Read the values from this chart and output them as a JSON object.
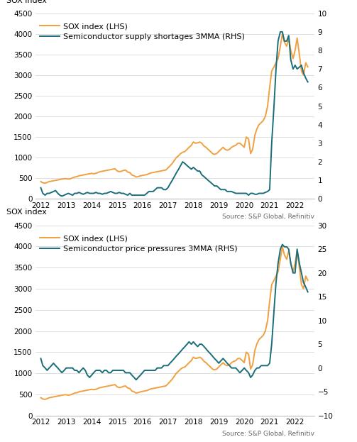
{
  "fig_width": 5.03,
  "fig_height": 6.23,
  "dpi": 100,
  "background_color": "#ffffff",
  "sox_color": "#f0a040",
  "shortage_color": "#1a6e7a",
  "pressure_color": "#1a6e7a",
  "ylabel_lhs": "SOX index",
  "source_text": "Source: S&P Global, Refinitiv",
  "chart1": {
    "legend1": "SOX index (LHS)",
    "legend2": "Semiconductor supply shortages 3MMA (RHS)",
    "ylim_lhs": [
      0,
      4500
    ],
    "yticks_lhs": [
      0,
      500,
      1000,
      1500,
      2000,
      2500,
      3000,
      3500,
      4000,
      4500
    ],
    "ylim_rhs": [
      0,
      10
    ],
    "yticks_rhs": [
      0,
      1,
      2,
      3,
      4,
      5,
      6,
      7,
      8,
      9,
      10
    ],
    "sox_x": [
      2012.0,
      2012.08,
      2012.17,
      2012.25,
      2012.33,
      2012.42,
      2012.5,
      2012.58,
      2012.67,
      2012.75,
      2012.83,
      2012.92,
      2013.0,
      2013.08,
      2013.17,
      2013.25,
      2013.33,
      2013.42,
      2013.5,
      2013.58,
      2013.67,
      2013.75,
      2013.83,
      2013.92,
      2014.0,
      2014.08,
      2014.17,
      2014.25,
      2014.33,
      2014.42,
      2014.5,
      2014.58,
      2014.67,
      2014.75,
      2014.83,
      2014.92,
      2015.0,
      2015.08,
      2015.17,
      2015.25,
      2015.33,
      2015.42,
      2015.5,
      2015.58,
      2015.67,
      2015.75,
      2015.83,
      2015.92,
      2016.0,
      2016.08,
      2016.17,
      2016.25,
      2016.33,
      2016.42,
      2016.5,
      2016.58,
      2016.67,
      2016.75,
      2016.83,
      2016.92,
      2017.0,
      2017.08,
      2017.17,
      2017.25,
      2017.33,
      2017.42,
      2017.5,
      2017.58,
      2017.67,
      2017.75,
      2017.83,
      2017.92,
      2018.0,
      2018.08,
      2018.17,
      2018.25,
      2018.33,
      2018.42,
      2018.5,
      2018.58,
      2018.67,
      2018.75,
      2018.83,
      2018.92,
      2019.0,
      2019.08,
      2019.17,
      2019.25,
      2019.33,
      2019.42,
      2019.5,
      2019.58,
      2019.67,
      2019.75,
      2019.83,
      2019.92,
      2020.0,
      2020.08,
      2020.17,
      2020.25,
      2020.33,
      2020.42,
      2020.5,
      2020.58,
      2020.67,
      2020.75,
      2020.83,
      2020.92,
      2021.0,
      2021.08,
      2021.17,
      2021.25,
      2021.33,
      2021.42,
      2021.5,
      2021.58,
      2021.67,
      2021.75,
      2021.83,
      2021.92,
      2022.0,
      2022.08,
      2022.17,
      2022.25,
      2022.33,
      2022.42,
      2022.5
    ],
    "sox_y": [
      420,
      390,
      380,
      400,
      420,
      430,
      440,
      450,
      460,
      470,
      480,
      490,
      490,
      480,
      490,
      510,
      530,
      540,
      560,
      570,
      580,
      590,
      600,
      610,
      620,
      610,
      620,
      640,
      660,
      670,
      680,
      690,
      700,
      710,
      720,
      730,
      680,
      660,
      670,
      690,
      700,
      650,
      640,
      580,
      560,
      530,
      540,
      560,
      570,
      580,
      590,
      610,
      630,
      640,
      650,
      660,
      670,
      680,
      690,
      700,
      750,
      800,
      860,
      930,
      1000,
      1050,
      1100,
      1130,
      1150,
      1200,
      1250,
      1300,
      1380,
      1350,
      1360,
      1380,
      1350,
      1280,
      1250,
      1200,
      1150,
      1100,
      1080,
      1100,
      1150,
      1200,
      1250,
      1200,
      1180,
      1200,
      1250,
      1280,
      1300,
      1350,
      1350,
      1300,
      1250,
      1500,
      1450,
      1100,
      1200,
      1550,
      1700,
      1800,
      1850,
      1900,
      2000,
      2250,
      2700,
      3100,
      3200,
      3300,
      3400,
      3700,
      4000,
      3800,
      3700,
      3900,
      3600,
      3400,
      3600,
      3900,
      3500,
      3100,
      3000,
      3300,
      3200
    ],
    "rhs_x": [
      2012.0,
      2012.08,
      2012.17,
      2012.25,
      2012.33,
      2012.42,
      2012.5,
      2012.58,
      2012.67,
      2012.75,
      2012.83,
      2012.92,
      2013.0,
      2013.08,
      2013.17,
      2013.25,
      2013.33,
      2013.42,
      2013.5,
      2013.58,
      2013.67,
      2013.75,
      2013.83,
      2013.92,
      2014.0,
      2014.08,
      2014.17,
      2014.25,
      2014.33,
      2014.42,
      2014.5,
      2014.58,
      2014.67,
      2014.75,
      2014.83,
      2014.92,
      2015.0,
      2015.08,
      2015.17,
      2015.25,
      2015.33,
      2015.42,
      2015.5,
      2015.58,
      2015.67,
      2015.75,
      2015.83,
      2015.92,
      2016.0,
      2016.08,
      2016.17,
      2016.25,
      2016.33,
      2016.42,
      2016.5,
      2016.58,
      2016.67,
      2016.75,
      2016.83,
      2016.92,
      2017.0,
      2017.08,
      2017.17,
      2017.25,
      2017.33,
      2017.42,
      2017.5,
      2017.58,
      2017.67,
      2017.75,
      2017.83,
      2017.92,
      2018.0,
      2018.08,
      2018.17,
      2018.25,
      2018.33,
      2018.42,
      2018.5,
      2018.58,
      2018.67,
      2018.75,
      2018.83,
      2018.92,
      2019.0,
      2019.08,
      2019.17,
      2019.25,
      2019.33,
      2019.42,
      2019.5,
      2019.58,
      2019.67,
      2019.75,
      2019.83,
      2019.92,
      2020.0,
      2020.08,
      2020.17,
      2020.25,
      2020.33,
      2020.42,
      2020.5,
      2020.58,
      2020.67,
      2020.75,
      2020.83,
      2020.92,
      2021.0,
      2021.08,
      2021.17,
      2021.25,
      2021.33,
      2021.42,
      2021.5,
      2021.58,
      2021.67,
      2021.75,
      2021.83,
      2021.92,
      2022.0,
      2022.08,
      2022.17,
      2022.25,
      2022.33,
      2022.42,
      2022.5
    ],
    "rhs_y": [
      0.6,
      0.3,
      0.2,
      0.3,
      0.3,
      0.35,
      0.4,
      0.45,
      0.3,
      0.2,
      0.15,
      0.2,
      0.25,
      0.3,
      0.25,
      0.2,
      0.3,
      0.3,
      0.35,
      0.3,
      0.25,
      0.3,
      0.35,
      0.3,
      0.3,
      0.3,
      0.35,
      0.3,
      0.3,
      0.25,
      0.3,
      0.3,
      0.35,
      0.4,
      0.35,
      0.3,
      0.3,
      0.35,
      0.3,
      0.3,
      0.25,
      0.2,
      0.3,
      0.2,
      0.2,
      0.2,
      0.2,
      0.2,
      0.2,
      0.2,
      0.3,
      0.4,
      0.4,
      0.4,
      0.5,
      0.6,
      0.6,
      0.6,
      0.5,
      0.5,
      0.6,
      0.8,
      1.0,
      1.2,
      1.4,
      1.6,
      1.8,
      2.0,
      1.9,
      1.8,
      1.7,
      1.6,
      1.7,
      1.6,
      1.5,
      1.5,
      1.3,
      1.2,
      1.1,
      1.0,
      0.9,
      0.8,
      0.7,
      0.7,
      0.6,
      0.5,
      0.5,
      0.5,
      0.4,
      0.4,
      0.4,
      0.35,
      0.3,
      0.3,
      0.3,
      0.3,
      0.3,
      0.3,
      0.2,
      0.3,
      0.3,
      0.25,
      0.25,
      0.3,
      0.3,
      0.3,
      0.35,
      0.4,
      0.5,
      3.0,
      5.0,
      7.0,
      8.5,
      9.0,
      9.0,
      8.5,
      8.5,
      8.8,
      7.5,
      7.0,
      7.2,
      7.0,
      7.1,
      7.2,
      6.8,
      6.5,
      6.3
    ]
  },
  "chart2": {
    "legend1": "SOX index (LHS)",
    "legend2": "Semiconductor price pressures 3MMA (RHS)",
    "ylim_lhs": [
      0,
      4500
    ],
    "yticks_lhs": [
      0,
      500,
      1000,
      1500,
      2000,
      2500,
      3000,
      3500,
      4000,
      4500
    ],
    "ylim_rhs": [
      -10,
      30
    ],
    "yticks_rhs": [
      -10,
      -5,
      0,
      5,
      10,
      15,
      20,
      25,
      30
    ],
    "sox_x": [
      2012.0,
      2012.08,
      2012.17,
      2012.25,
      2012.33,
      2012.42,
      2012.5,
      2012.58,
      2012.67,
      2012.75,
      2012.83,
      2012.92,
      2013.0,
      2013.08,
      2013.17,
      2013.25,
      2013.33,
      2013.42,
      2013.5,
      2013.58,
      2013.67,
      2013.75,
      2013.83,
      2013.92,
      2014.0,
      2014.08,
      2014.17,
      2014.25,
      2014.33,
      2014.42,
      2014.5,
      2014.58,
      2014.67,
      2014.75,
      2014.83,
      2014.92,
      2015.0,
      2015.08,
      2015.17,
      2015.25,
      2015.33,
      2015.42,
      2015.5,
      2015.58,
      2015.67,
      2015.75,
      2015.83,
      2015.92,
      2016.0,
      2016.08,
      2016.17,
      2016.25,
      2016.33,
      2016.42,
      2016.5,
      2016.58,
      2016.67,
      2016.75,
      2016.83,
      2016.92,
      2017.0,
      2017.08,
      2017.17,
      2017.25,
      2017.33,
      2017.42,
      2017.5,
      2017.58,
      2017.67,
      2017.75,
      2017.83,
      2017.92,
      2018.0,
      2018.08,
      2018.17,
      2018.25,
      2018.33,
      2018.42,
      2018.5,
      2018.58,
      2018.67,
      2018.75,
      2018.83,
      2018.92,
      2019.0,
      2019.08,
      2019.17,
      2019.25,
      2019.33,
      2019.42,
      2019.5,
      2019.58,
      2019.67,
      2019.75,
      2019.83,
      2019.92,
      2020.0,
      2020.08,
      2020.17,
      2020.25,
      2020.33,
      2020.42,
      2020.5,
      2020.58,
      2020.67,
      2020.75,
      2020.83,
      2020.92,
      2021.0,
      2021.08,
      2021.17,
      2021.25,
      2021.33,
      2021.42,
      2021.5,
      2021.58,
      2021.67,
      2021.75,
      2021.83,
      2021.92,
      2022.0,
      2022.08,
      2022.17,
      2022.25,
      2022.33,
      2022.42,
      2022.5
    ],
    "sox_y": [
      420,
      390,
      380,
      400,
      420,
      430,
      440,
      450,
      460,
      470,
      480,
      490,
      490,
      480,
      490,
      510,
      530,
      540,
      560,
      570,
      580,
      590,
      600,
      610,
      620,
      610,
      620,
      640,
      660,
      670,
      680,
      690,
      700,
      710,
      720,
      730,
      680,
      660,
      670,
      690,
      700,
      650,
      640,
      580,
      560,
      530,
      540,
      560,
      570,
      580,
      590,
      610,
      630,
      640,
      650,
      660,
      670,
      680,
      690,
      700,
      750,
      800,
      860,
      930,
      1000,
      1050,
      1100,
      1130,
      1150,
      1200,
      1250,
      1300,
      1380,
      1350,
      1360,
      1380,
      1350,
      1280,
      1250,
      1200,
      1150,
      1100,
      1080,
      1100,
      1150,
      1200,
      1250,
      1200,
      1180,
      1200,
      1250,
      1280,
      1300,
      1350,
      1350,
      1300,
      1250,
      1500,
      1450,
      1100,
      1200,
      1550,
      1700,
      1800,
      1850,
      1900,
      2000,
      2250,
      2700,
      3100,
      3200,
      3300,
      3400,
      3700,
      4000,
      3800,
      3700,
      3900,
      3600,
      3400,
      3600,
      3900,
      3500,
      3100,
      3000,
      3300,
      3200
    ],
    "rhs_x": [
      2012.0,
      2012.08,
      2012.17,
      2012.25,
      2012.33,
      2012.42,
      2012.5,
      2012.58,
      2012.67,
      2012.75,
      2012.83,
      2012.92,
      2013.0,
      2013.08,
      2013.17,
      2013.25,
      2013.33,
      2013.42,
      2013.5,
      2013.58,
      2013.67,
      2013.75,
      2013.83,
      2013.92,
      2014.0,
      2014.08,
      2014.17,
      2014.25,
      2014.33,
      2014.42,
      2014.5,
      2014.58,
      2014.67,
      2014.75,
      2014.83,
      2014.92,
      2015.0,
      2015.08,
      2015.17,
      2015.25,
      2015.33,
      2015.42,
      2015.5,
      2015.58,
      2015.67,
      2015.75,
      2015.83,
      2015.92,
      2016.0,
      2016.08,
      2016.17,
      2016.25,
      2016.33,
      2016.42,
      2016.5,
      2016.58,
      2016.67,
      2016.75,
      2016.83,
      2016.92,
      2017.0,
      2017.08,
      2017.17,
      2017.25,
      2017.33,
      2017.42,
      2017.5,
      2017.58,
      2017.67,
      2017.75,
      2017.83,
      2017.92,
      2018.0,
      2018.08,
      2018.17,
      2018.25,
      2018.33,
      2018.42,
      2018.5,
      2018.58,
      2018.67,
      2018.75,
      2018.83,
      2018.92,
      2019.0,
      2019.08,
      2019.17,
      2019.25,
      2019.33,
      2019.42,
      2019.5,
      2019.58,
      2019.67,
      2019.75,
      2019.83,
      2019.92,
      2020.0,
      2020.08,
      2020.17,
      2020.25,
      2020.33,
      2020.42,
      2020.5,
      2020.58,
      2020.67,
      2020.75,
      2020.83,
      2020.92,
      2021.0,
      2021.08,
      2021.17,
      2021.25,
      2021.33,
      2021.42,
      2021.5,
      2021.58,
      2021.67,
      2021.75,
      2021.83,
      2021.92,
      2022.0,
      2022.08,
      2022.17,
      2022.25,
      2022.33,
      2022.42,
      2022.5
    ],
    "rhs_y": [
      2.0,
      0.5,
      0.0,
      -0.5,
      0.0,
      0.5,
      1.0,
      0.5,
      0.0,
      -0.5,
      -1.0,
      -0.5,
      0.0,
      0.0,
      0.0,
      0.0,
      -0.5,
      -0.5,
      -1.0,
      -0.5,
      0.0,
      -0.5,
      -1.5,
      -2.0,
      -1.5,
      -1.0,
      -0.5,
      -0.5,
      -0.5,
      -1.0,
      -0.5,
      -0.5,
      -1.0,
      -1.0,
      -0.5,
      -0.5,
      -0.5,
      -0.5,
      -0.5,
      -0.5,
      -1.0,
      -1.0,
      -1.0,
      -1.5,
      -2.0,
      -2.5,
      -2.0,
      -1.5,
      -1.0,
      -0.5,
      -0.5,
      -0.5,
      -0.5,
      -0.5,
      -0.5,
      0.0,
      0.0,
      0.0,
      0.5,
      0.5,
      0.5,
      1.0,
      1.5,
      2.0,
      2.5,
      3.0,
      3.5,
      4.0,
      4.5,
      5.0,
      5.5,
      5.0,
      5.5,
      5.0,
      4.5,
      5.0,
      5.0,
      4.5,
      4.0,
      3.5,
      3.0,
      2.5,
      2.0,
      1.5,
      1.0,
      1.5,
      2.0,
      1.5,
      1.0,
      0.5,
      0.0,
      0.0,
      0.0,
      -0.5,
      -1.0,
      -0.5,
      0.0,
      -0.5,
      -1.0,
      -2.0,
      -1.5,
      -0.5,
      0.0,
      0.0,
      0.5,
      0.5,
      0.5,
      0.5,
      1.0,
      5.0,
      12.0,
      18.0,
      22.0,
      25.0,
      26.0,
      25.5,
      25.5,
      25.0,
      22.0,
      20.0,
      20.0,
      25.0,
      22.0,
      20.0,
      18.0,
      17.0,
      16.0
    ]
  },
  "xticks": [
    2012,
    2013,
    2014,
    2015,
    2016,
    2017,
    2018,
    2019,
    2020,
    2021,
    2022
  ],
  "xlim": [
    2011.8,
    2022.75
  ],
  "tick_fontsize": 7.5,
  "label_fontsize": 8.0,
  "legend_fontsize": 8.0,
  "source_fontsize": 6.5,
  "linewidth": 1.4,
  "grid_color": "#d0d0d0",
  "text_color": "#666666"
}
